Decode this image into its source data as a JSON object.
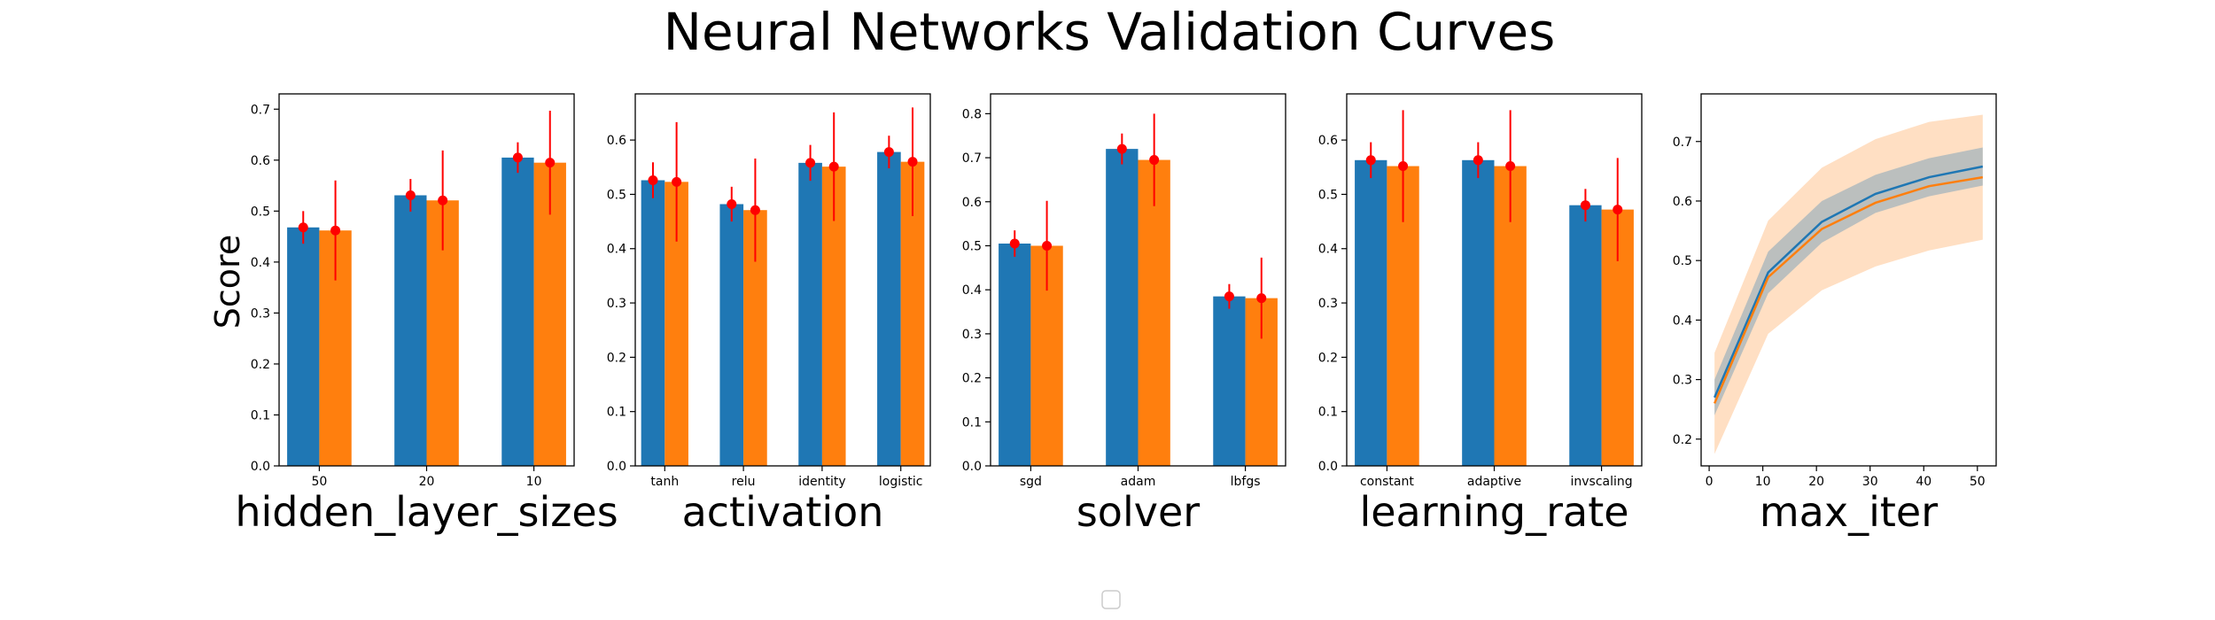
{
  "title": "Neural Networks Validation Curves",
  "ylabel": "Score",
  "colors": {
    "train": "#1f77b4",
    "test": "#ff7f0e",
    "error": "#ff0000"
  },
  "chart_data": [
    {
      "type": "bar",
      "xlabel": "hidden_layer_sizes",
      "categories": [
        "50",
        "20",
        "10"
      ],
      "ylim": [
        0,
        0.73
      ],
      "yticks": [
        "0.0",
        "0.1",
        "0.2",
        "0.3",
        "0.4",
        "0.5",
        "0.6",
        "0.7"
      ],
      "series": [
        {
          "values": [
            0.468,
            0.531,
            0.605
          ],
          "errors": [
            0.032,
            0.032,
            0.03
          ]
        },
        {
          "values": [
            0.462,
            0.521,
            0.595
          ],
          "errors": [
            0.098,
            0.098,
            0.102
          ]
        }
      ]
    },
    {
      "type": "bar",
      "xlabel": "activation",
      "categories": [
        "tanh",
        "relu",
        "identity",
        "logistic"
      ],
      "ylim": [
        0,
        0.685
      ],
      "yticks": [
        "0.0",
        "0.1",
        "0.2",
        "0.3",
        "0.4",
        "0.5",
        "0.6"
      ],
      "series": [
        {
          "values": [
            0.526,
            0.482,
            0.558,
            0.578
          ],
          "errors": [
            0.033,
            0.032,
            0.033,
            0.03
          ]
        },
        {
          "values": [
            0.523,
            0.471,
            0.551,
            0.56
          ],
          "errors": [
            0.11,
            0.095,
            0.1,
            0.1
          ]
        }
      ]
    },
    {
      "type": "bar",
      "xlabel": "solver",
      "categories": [
        "sgd",
        "adam",
        "lbfgs"
      ],
      "ylim": [
        0,
        0.845
      ],
      "yticks": [
        "0.0",
        "0.1",
        "0.2",
        "0.3",
        "0.4",
        "0.5",
        "0.6",
        "0.7",
        "0.8"
      ],
      "series": [
        {
          "values": [
            0.505,
            0.72,
            0.385
          ],
          "errors": [
            0.03,
            0.035,
            0.028
          ]
        },
        {
          "values": [
            0.5,
            0.695,
            0.381
          ],
          "errors": [
            0.102,
            0.105,
            0.092
          ]
        }
      ]
    },
    {
      "type": "bar",
      "xlabel": "learning_rate",
      "categories": [
        "constant",
        "adaptive",
        "invscaling"
      ],
      "ylim": [
        0,
        0.685
      ],
      "yticks": [
        "0.0",
        "0.1",
        "0.2",
        "0.3",
        "0.4",
        "0.5",
        "0.6"
      ],
      "series": [
        {
          "values": [
            0.563,
            0.563,
            0.48
          ],
          "errors": [
            0.033,
            0.033,
            0.03
          ]
        },
        {
          "values": [
            0.552,
            0.552,
            0.472
          ],
          "errors": [
            0.103,
            0.103,
            0.095
          ]
        }
      ]
    },
    {
      "type": "line",
      "xlabel": "max_iter",
      "xlim": [
        -1.5,
        53.5
      ],
      "ylim": [
        0.155,
        0.78
      ],
      "xticks": [
        0,
        10,
        20,
        30,
        40,
        50
      ],
      "xtick_labels": [
        "0",
        "10",
        "20",
        "30",
        "40",
        "50"
      ],
      "yticks": [
        0.2,
        0.3,
        0.4,
        0.5,
        0.6,
        0.7
      ],
      "ytick_labels": [
        "0.2",
        "0.3",
        "0.4",
        "0.5",
        "0.6",
        "0.7"
      ],
      "x": [
        1,
        11,
        21,
        31,
        41,
        51
      ],
      "series": [
        {
          "values": [
            0.27,
            0.48,
            0.565,
            0.612,
            0.64,
            0.658
          ],
          "band": [
            0.03,
            0.035,
            0.035,
            0.032,
            0.032,
            0.032
          ]
        },
        {
          "values": [
            0.26,
            0.472,
            0.553,
            0.597,
            0.625,
            0.64
          ],
          "band": [
            0.085,
            0.095,
            0.103,
            0.107,
            0.108,
            0.105
          ]
        }
      ]
    }
  ]
}
